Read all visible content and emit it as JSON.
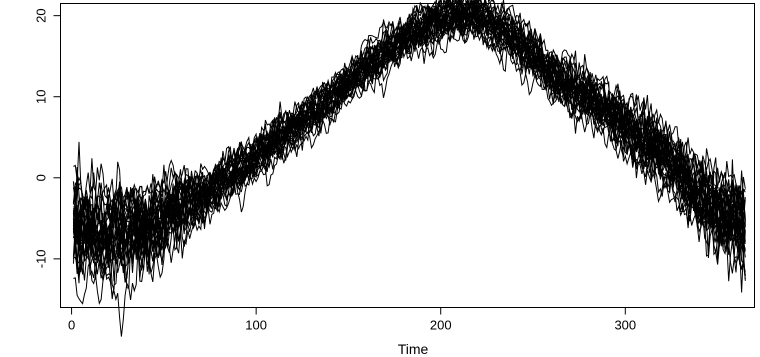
{
  "chart_data": {
    "type": "line",
    "title": "",
    "xlabel": "Time",
    "ylabel": "",
    "xlim": [
      -6,
      370
    ],
    "ylim": [
      -16,
      21.5
    ],
    "x_ticks": [
      0,
      100,
      200,
      300
    ],
    "y_ticks": [
      -10,
      0,
      10,
      20
    ],
    "x_tick_labels": [
      "0",
      "100",
      "200",
      "300"
    ],
    "y_tick_labels": [
      "-10",
      "0",
      "10",
      "20"
    ],
    "grid": false,
    "legend": "none",
    "line_color": "#000000",
    "series_count": 30,
    "x_range": [
      1,
      365
    ],
    "mean_curve": {
      "x": [
        1,
        20,
        40,
        60,
        80,
        100,
        120,
        140,
        160,
        180,
        200,
        220,
        240,
        260,
        280,
        300,
        320,
        340,
        355,
        365
      ],
      "y": [
        -7.5,
        -8.5,
        -7.5,
        -4.5,
        -1.5,
        2,
        5.5,
        9,
        13,
        16.5,
        19,
        19.5,
        16.5,
        12,
        9,
        5.5,
        2,
        -3,
        -6,
        -7.5
      ]
    },
    "spread": {
      "x": [
        1,
        40,
        80,
        180,
        220,
        300,
        340,
        365
      ],
      "half_width": [
        3.5,
        3.0,
        1.5,
        1.5,
        1.5,
        2.0,
        2.5,
        3.5
      ]
    }
  }
}
